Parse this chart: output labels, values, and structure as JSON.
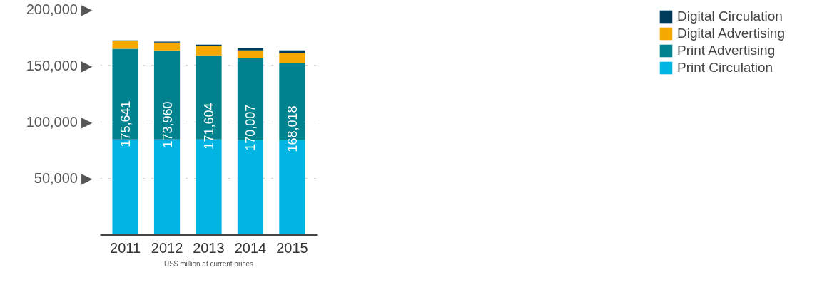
{
  "chart_data": {
    "type": "bar",
    "stacked": true,
    "categories": [
      "2011",
      "2012",
      "2013",
      "2014",
      "2015"
    ],
    "series": [
      {
        "name": "Print Circulation",
        "color": "#00b5e2",
        "values": [
          84400,
          84400,
          84400,
          83700,
          83700
        ]
      },
      {
        "name": "Print Advertising",
        "color": "#00838f",
        "values": [
          80300,
          78900,
          74500,
          72700,
          68500
        ]
      },
      {
        "name": "Digital Advertising",
        "color": "#f5a800",
        "values": [
          6900,
          6900,
          8400,
          6900,
          8400
        ]
      },
      {
        "name": "Digital Circulation",
        "color": "#003b5c",
        "values": [
          500,
          800,
          1000,
          2300,
          2700
        ]
      }
    ],
    "ylim": [
      0,
      200000
    ],
    "yticks": [
      {
        "value": 50000,
        "label": "50,000 ▶"
      },
      {
        "value": 100000,
        "label": "100,000 ▶"
      },
      {
        "value": 150000,
        "label": "150,000 ▶"
      },
      {
        "value": 200000,
        "label": "200,000 ▶"
      }
    ],
    "grid": "y",
    "line_style": "dotted",
    "legend": "right",
    "annotations": [
      "175,641",
      "173,960",
      "171,604",
      "170,007",
      "168,018",
      "US$ million at current prices"
    ]
  }
}
